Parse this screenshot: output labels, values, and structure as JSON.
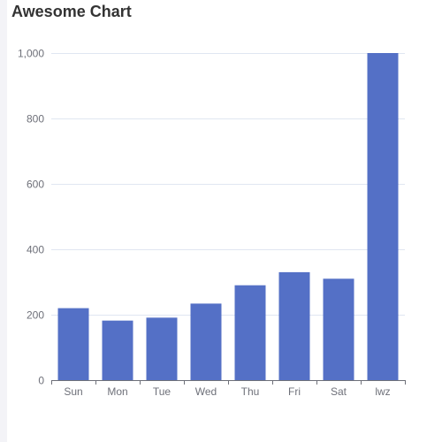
{
  "chart_data": {
    "type": "bar",
    "title": "Awesome Chart",
    "categories": [
      "Sun",
      "Mon",
      "Tue",
      "Wed",
      "Thu",
      "Fri",
      "Sat",
      "lwz"
    ],
    "values": [
      220,
      182,
      191,
      234,
      290,
      330,
      310,
      1000
    ],
    "ylim": [
      0,
      1000
    ],
    "yticks": [
      0,
      200,
      400,
      600,
      800,
      1000
    ],
    "ytick_labels": [
      "0",
      "200",
      "400",
      "600",
      "800",
      "1,000"
    ],
    "bar_color": "#5470c6",
    "grid": true,
    "xlabel": "",
    "ylabel": ""
  }
}
